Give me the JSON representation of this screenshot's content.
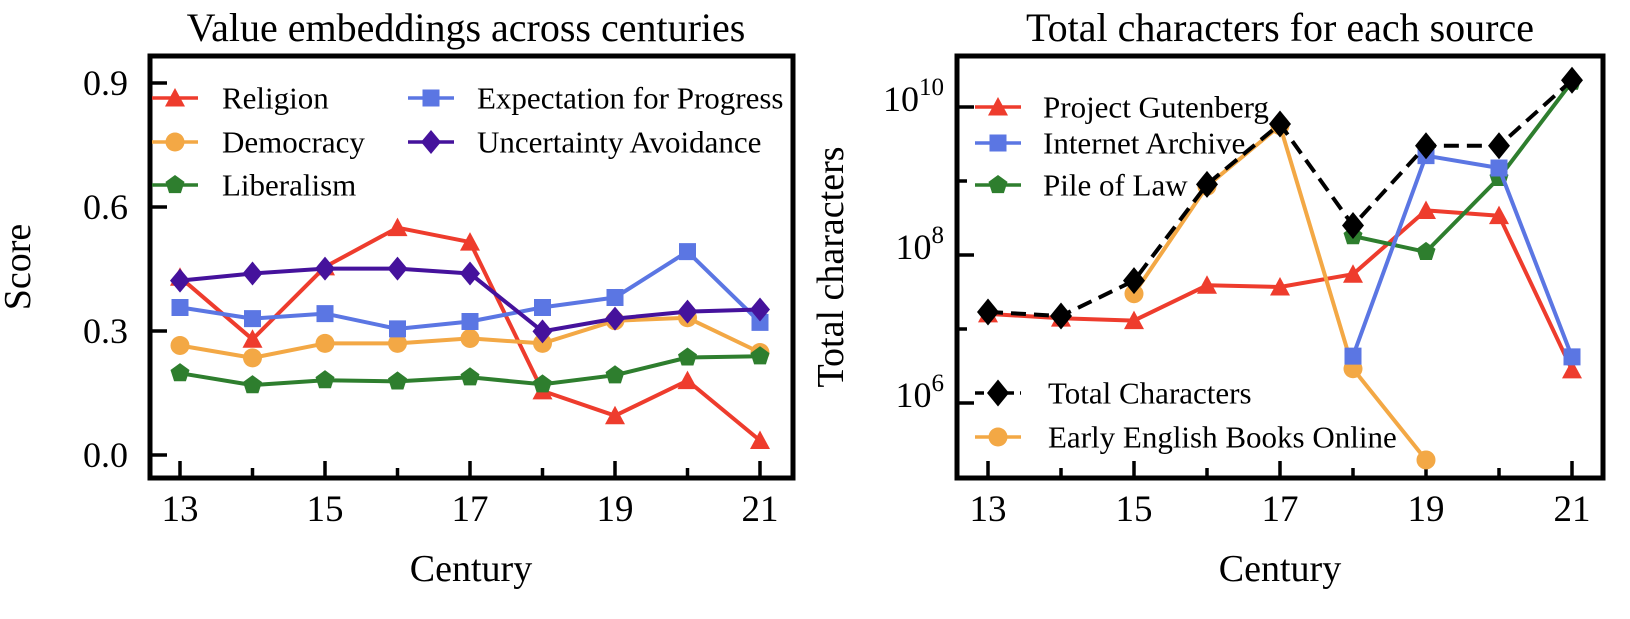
{
  "figure": {
    "background": "#ffffff"
  },
  "chart_data": [
    {
      "type": "line",
      "title": "Value embeddings across centuries",
      "xlabel": "Century",
      "ylabel": "Score",
      "x_tick_labels": [
        "13",
        "15",
        "17",
        "19",
        "21"
      ],
      "x_major_ticks": [
        13,
        15,
        17,
        19,
        21
      ],
      "x_minor_ticks": [
        14,
        16,
        18,
        20
      ],
      "y_tick_labels": [
        "0.0",
        "0.3",
        "0.6",
        "0.9"
      ],
      "y_major_ticks": [
        0.0,
        0.3,
        0.6,
        0.9
      ],
      "xlim": [
        12.6,
        21.45
      ],
      "ylim": [
        -0.06,
        0.97
      ],
      "grid": false,
      "legend_position": "upper-left, two columns inside plot",
      "categories": [
        13,
        14,
        15,
        16,
        17,
        18,
        19,
        20,
        21
      ],
      "series": [
        {
          "name": "Religion",
          "color": "#ee3c2d",
          "marker": "triangle",
          "dashed": false,
          "values": [
            0.43,
            0.28,
            0.455,
            0.55,
            0.515,
            0.155,
            0.095,
            0.18,
            0.035
          ]
        },
        {
          "name": "Democracy",
          "color": "#f3a845",
          "marker": "circle",
          "dashed": false,
          "values": [
            0.265,
            0.235,
            0.27,
            0.27,
            0.282,
            0.27,
            0.325,
            0.332,
            0.248
          ]
        },
        {
          "name": "Liberalism",
          "color": "#2e7e2e",
          "marker": "pentagon",
          "dashed": false,
          "values": [
            0.198,
            0.169,
            0.181,
            0.178,
            0.188,
            0.171,
            0.193,
            0.236,
            0.239
          ]
        },
        {
          "name": "Expectation for Progress",
          "color": "#5b76e3",
          "marker": "square",
          "dashed": false,
          "values": [
            0.357,
            0.33,
            0.342,
            0.305,
            0.323,
            0.357,
            0.381,
            0.492,
            0.321
          ]
        },
        {
          "name": "Uncertainty Avoidance",
          "color": "#45129c",
          "marker": "diamond",
          "dashed": false,
          "values": [
            0.422,
            0.439,
            0.451,
            0.451,
            0.439,
            0.299,
            0.33,
            0.347,
            0.352
          ]
        }
      ]
    },
    {
      "type": "line",
      "title": "Total characters for each source",
      "xlabel": "Century",
      "ylabel": "Total characters",
      "y_scale": "log",
      "x_tick_labels": [
        "13",
        "15",
        "17",
        "19",
        "21"
      ],
      "x_major_ticks": [
        13,
        15,
        17,
        19,
        21
      ],
      "x_minor_ticks": [
        14,
        16,
        18,
        20
      ],
      "y_major_ticks": [
        1000000.0,
        100000000.0,
        10000000000.0
      ],
      "y_tick_labels": [
        [
          "10",
          "6"
        ],
        [
          "10",
          "8"
        ],
        [
          "10",
          "10"
        ]
      ],
      "y_minor_ticks": [
        100000.0,
        10000000.0,
        1000000000.0
      ],
      "xlim": [
        12.6,
        21.45
      ],
      "ylim": [
        100000.0,
        40000000000.0
      ],
      "grid": false,
      "legend_position": "upper-left and lower-left boxes inside plot",
      "categories": [
        13,
        14,
        15,
        16,
        17,
        18,
        19,
        20,
        21
      ],
      "series": [
        {
          "name": "Project Gutenberg",
          "color": "#ee3c2d",
          "marker": "triangle",
          "dashed": false,
          "values": [
            16000000.0,
            14000000.0,
            13000000.0,
            39000000.0,
            37000000.0,
            55000000.0,
            400000000.0,
            340000000.0,
            2800000.0
          ]
        },
        {
          "name": "Internet Archive",
          "color": "#5b76e3",
          "marker": "square",
          "dashed": false,
          "values": [
            null,
            null,
            null,
            null,
            null,
            4300000.0,
            2200000000.0,
            1500000000.0,
            4200000.0
          ]
        },
        {
          "name": "Pile of Law",
          "color": "#2e7e2e",
          "marker": "pentagon",
          "dashed": false,
          "values": [
            null,
            null,
            null,
            null,
            null,
            180000000.0,
            110000000.0,
            1100000000.0,
            22000000000.0
          ]
        },
        {
          "name": "Total Characters",
          "color": "#000000",
          "marker": "diamond-large",
          "dashed": true,
          "values": [
            17000000.0,
            15000000.0,
            45000000.0,
            900000000.0,
            5900000000.0,
            250000000.0,
            3000000000.0,
            3000000000.0,
            23000000000.0
          ]
        },
        {
          "name": "Early English Books Online",
          "color": "#f3a845",
          "marker": "circle",
          "dashed": false,
          "values": [
            null,
            null,
            30000000.0,
            850000000.0,
            5600000000.0,
            2900000.0,
            170000.0,
            null,
            null
          ]
        }
      ]
    }
  ]
}
